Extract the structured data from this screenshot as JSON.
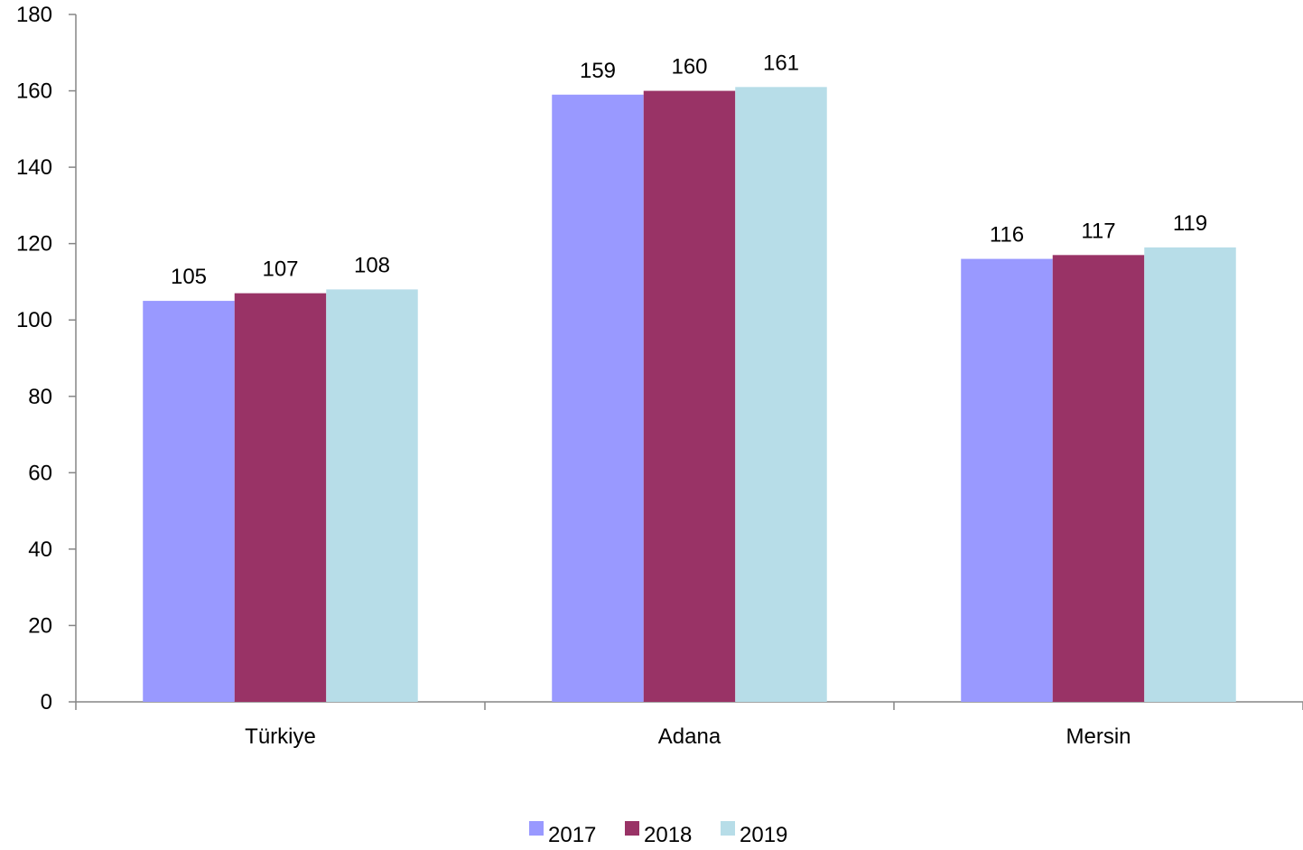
{
  "chart_data": {
    "type": "bar",
    "title": "",
    "xlabel": "",
    "ylabel": "",
    "categories": [
      "Türkiye",
      "Adana",
      "Mersin"
    ],
    "series": [
      {
        "name": "2017",
        "values": [
          105,
          159,
          116
        ],
        "color": "#9999ff"
      },
      {
        "name": "2018",
        "values": [
          107,
          160,
          117
        ],
        "color": "#993366"
      },
      {
        "name": "2019",
        "values": [
          108,
          161,
          119
        ],
        "color": "#b7dde8"
      }
    ],
    "ylim": [
      0,
      180
    ],
    "yticks": [
      "0",
      "20",
      "40",
      "60",
      "80",
      "100",
      "120",
      "140",
      "160",
      "180"
    ],
    "grid": false,
    "legend_position": "bottom"
  }
}
